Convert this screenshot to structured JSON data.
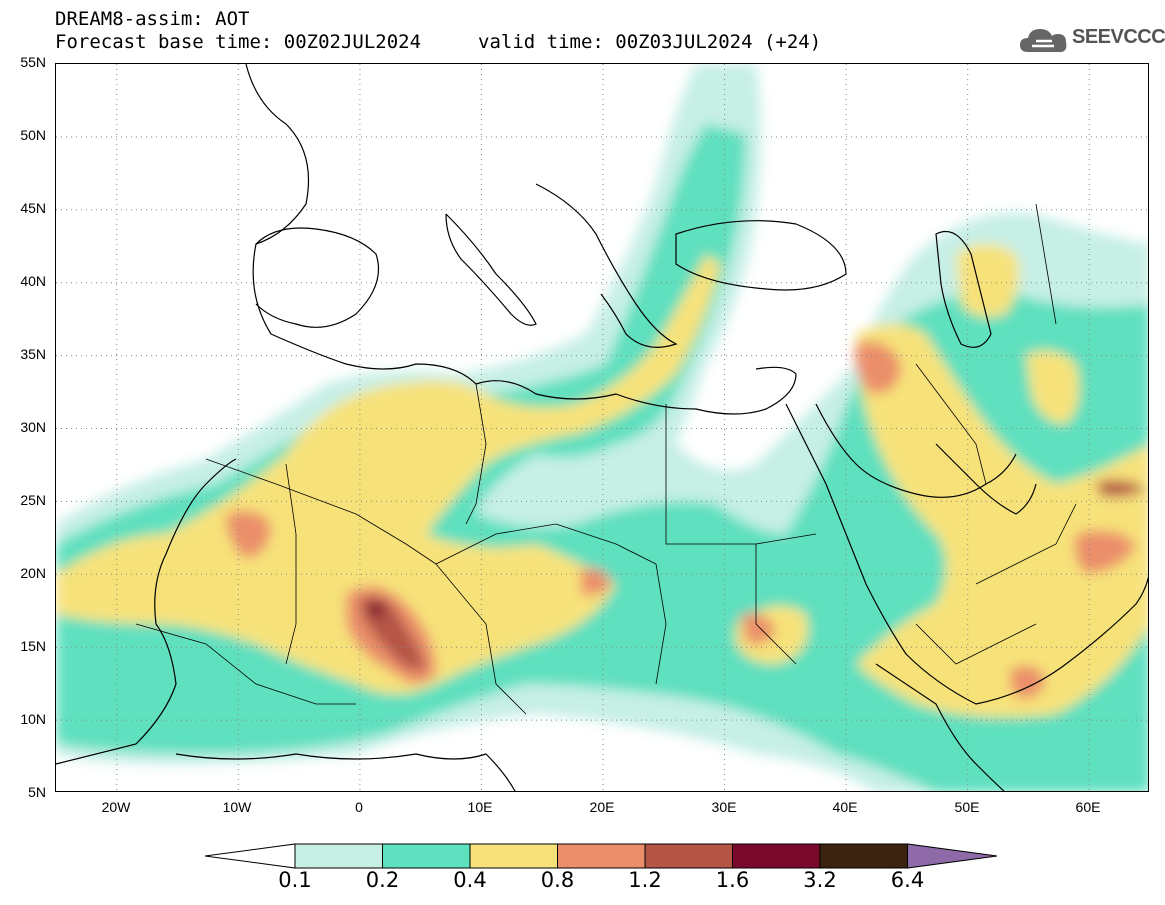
{
  "header": {
    "title": "DREAM8-assim: AOT",
    "base_time": "Forecast base time: 00Z02JUL2024",
    "valid_time": "valid time: 00Z03JUL2024 (+24)"
  },
  "logo": {
    "text": "SEEVCCC",
    "icon": "cloud-icon"
  },
  "map": {
    "field": "Aerosol Optical Thickness",
    "lat_range": [
      5,
      55
    ],
    "lon_range": [
      -25,
      65
    ],
    "y_ticks": [
      "55N",
      "50N",
      "45N",
      "40N",
      "35N",
      "30N",
      "25N",
      "20N",
      "15N",
      "10N",
      "5N"
    ],
    "x_ticks": [
      "20W",
      "10W",
      "0",
      "10E",
      "20E",
      "30E",
      "40E",
      "50E",
      "60E"
    ],
    "grid": "dotted"
  },
  "colorbar": {
    "labels": [
      "0.1",
      "0.2",
      "0.4",
      "0.8",
      "1.2",
      "1.6",
      "3.2",
      "6.4"
    ],
    "colors": [
      "#ffffff",
      "#c6efe6",
      "#5fe0bf",
      "#f7e27a",
      "#eb8f6b",
      "#b55546",
      "#7a0a2b",
      "#3a2410",
      "#8f6aa8"
    ]
  }
}
